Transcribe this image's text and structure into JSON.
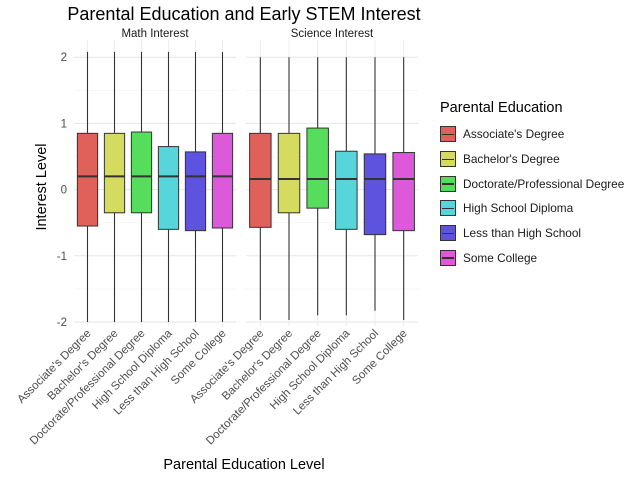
{
  "chart_data": {
    "type": "box",
    "title": "Parental Education and Early STEM Interest",
    "xlabel": "Parental Education Level",
    "ylabel": "Interest Level",
    "ylim": [
      -2.0,
      2.2
    ],
    "yticks": [
      -2,
      -1,
      0,
      1,
      2
    ],
    "grid": true,
    "legend_position": "right",
    "legend_title": "Parental Education",
    "categories": [
      "Associate's Degree",
      "Bachelor's Degree",
      "Doctorate/Professional Degree",
      "High School Diploma",
      "Less than High School",
      "Some College"
    ],
    "colors": [
      "#E0605A",
      "#D4DB5E",
      "#57DD5C",
      "#56D5DB",
      "#5E53DE",
      "#DC59DA"
    ],
    "panels": [
      {
        "label": "Math Interest",
        "boxes": [
          {
            "category": "Associate's Degree",
            "min": -2.0,
            "q1": -0.55,
            "median": 0.2,
            "q3": 0.85,
            "max": 2.08
          },
          {
            "category": "Bachelor's Degree",
            "min": -2.0,
            "q1": -0.35,
            "median": 0.2,
            "q3": 0.85,
            "max": 2.08
          },
          {
            "category": "Doctorate/Professional Degree",
            "min": -2.0,
            "q1": -0.35,
            "median": 0.2,
            "q3": 0.87,
            "max": 2.08
          },
          {
            "category": "High School Diploma",
            "min": -2.0,
            "q1": -0.6,
            "median": 0.2,
            "q3": 0.65,
            "max": 2.08
          },
          {
            "category": "Less than High School",
            "min": -2.0,
            "q1": -0.62,
            "median": 0.2,
            "q3": 0.57,
            "max": 2.08
          },
          {
            "category": "Some College",
            "min": -2.0,
            "q1": -0.58,
            "median": 0.2,
            "q3": 0.85,
            "max": 2.08
          }
        ]
      },
      {
        "label": "Science Interest",
        "boxes": [
          {
            "category": "Associate's Degree",
            "min": -1.97,
            "q1": -0.57,
            "median": 0.16,
            "q3": 0.85,
            "max": 2.0
          },
          {
            "category": "Bachelor's Degree",
            "min": -1.97,
            "q1": -0.35,
            "median": 0.16,
            "q3": 0.85,
            "max": 2.0
          },
          {
            "category": "Doctorate/Professional Degree",
            "min": -1.9,
            "q1": -0.28,
            "median": 0.16,
            "q3": 0.93,
            "max": 2.0
          },
          {
            "category": "High School Diploma",
            "min": -1.9,
            "q1": -0.6,
            "median": 0.16,
            "q3": 0.58,
            "max": 2.0
          },
          {
            "category": "Less than High School",
            "min": -1.83,
            "q1": -0.68,
            "median": 0.16,
            "q3": 0.54,
            "max": 2.0
          },
          {
            "category": "Some College",
            "min": -1.97,
            "q1": -0.62,
            "median": 0.16,
            "q3": 0.56,
            "max": 2.0
          }
        ]
      }
    ]
  }
}
